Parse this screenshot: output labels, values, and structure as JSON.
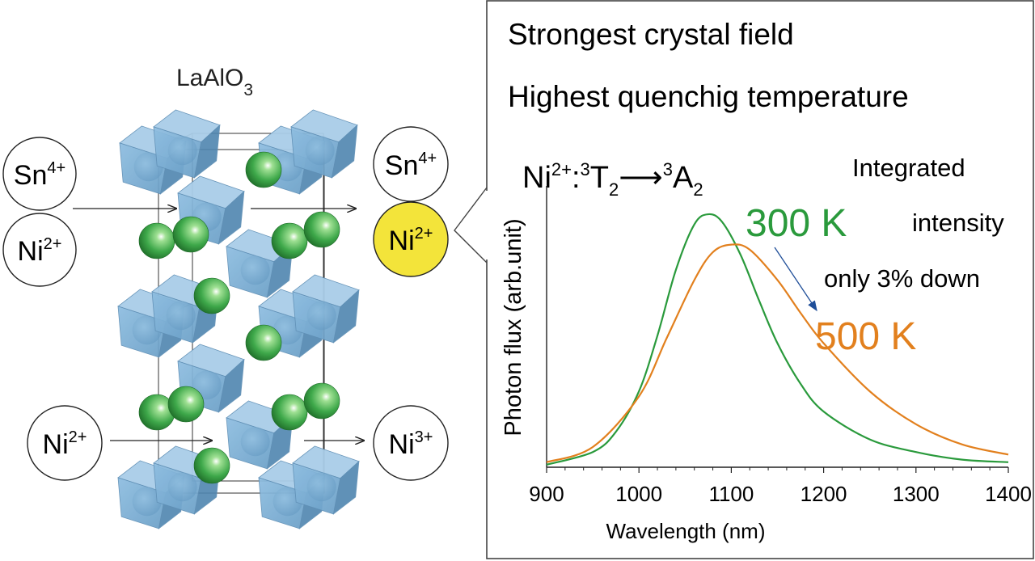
{
  "structure": {
    "title": {
      "main": "LaAlO",
      "sub": "3"
    },
    "ions": {
      "top_left_a": {
        "el": "Sn",
        "charge": "4+"
      },
      "top_left_b": {
        "el": "Ni",
        "charge": "2+"
      },
      "top_right_a": {
        "el": "Sn",
        "charge": "4+"
      },
      "top_right_b": {
        "el": "Ni",
        "charge": "2+"
      },
      "bottom_left": {
        "el": "Ni",
        "charge": "2+"
      },
      "bottom_right": {
        "el": "Ni",
        "charge": "3+"
      }
    },
    "colors": {
      "octahedron": "#7aaed3",
      "octahedron_dark": "#4f86b0",
      "sphere": "#3ea84a",
      "highlight_ion": "#f3e43a"
    }
  },
  "panel": {
    "line1": "Strongest crystal field",
    "line2": "Highest quenchig temperature",
    "transition": {
      "ion": "Ni",
      "charge": "2+",
      "colon": ":",
      "sup1": "3",
      "T": "T",
      "sub1": "2",
      "arrow": "⟶",
      "sup2": "3",
      "A": "A",
      "sub2": "2"
    },
    "note_line1": "Integrated",
    "note_line2": "intensity",
    "note_line3": "only 3% down",
    "arrow_color": "#1f4e99"
  },
  "chart_data": {
    "type": "line",
    "xlabel": "Wavelength (nm)",
    "ylabel": "Photon flux (arb.unit)",
    "xlim": [
      900,
      1400
    ],
    "ylim": [
      0,
      1.08
    ],
    "xticks": [
      900,
      1000,
      1100,
      1200,
      1300,
      1400
    ],
    "grid": false,
    "series": [
      {
        "name": "300 K",
        "color": "#2a9a3c",
        "x": [
          900,
          950,
          975,
          1000,
          1020,
          1040,
          1060,
          1075,
          1090,
          1110,
          1130,
          1150,
          1175,
          1200,
          1250,
          1300,
          1350,
          1400
        ],
        "y": [
          0.01,
          0.06,
          0.14,
          0.3,
          0.52,
          0.78,
          0.96,
          1.0,
          0.97,
          0.84,
          0.66,
          0.49,
          0.33,
          0.22,
          0.11,
          0.06,
          0.03,
          0.02
        ]
      },
      {
        "name": "500 K",
        "color": "#e2801e",
        "x": [
          900,
          950,
          1000,
          1030,
          1060,
          1080,
          1100,
          1120,
          1150,
          1175,
          1200,
          1250,
          1300,
          1350,
          1400
        ],
        "y": [
          0.02,
          0.08,
          0.28,
          0.51,
          0.74,
          0.85,
          0.88,
          0.86,
          0.74,
          0.61,
          0.49,
          0.3,
          0.17,
          0.09,
          0.05
        ]
      }
    ]
  }
}
